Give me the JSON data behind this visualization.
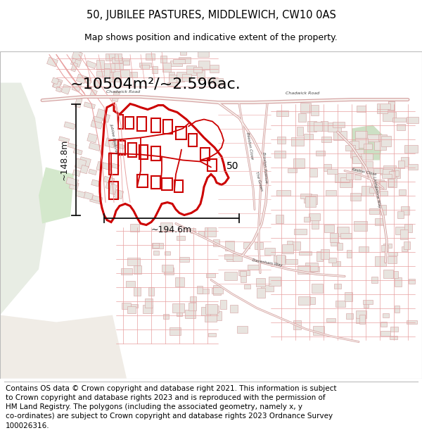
{
  "title": "50, JUBILEE PASTURES, MIDDLEWICH, CW10 0AS",
  "subtitle": "Map shows position and indicative extent of the property.",
  "title_fontsize": 10.5,
  "subtitle_fontsize": 9,
  "area_text": "~10504m²/~2.596ac.",
  "area_fontsize": 17,
  "width_label": "~194.6m",
  "height_label": "~148.8m",
  "number_label": "50",
  "footer_text": "Contains OS data © Crown copyright and database right 2021. This information is subject\nto Crown copyright and database rights 2023 and is reproduced with the permission of\nHM Land Registry. The polygons (including the associated geometry, namely x, y\nco-ordinates) are subject to Crown copyright and database rights 2023 Ordnance Survey\n100026316.",
  "footer_fontsize": 7.5,
  "map_bg_color": "#f9f6f2",
  "building_fill": "#e8e4df",
  "building_edge": "#d4a0a0",
  "road_color": "#e8a0a0",
  "road_color_dark": "#d08080",
  "highlight_color": "#cc0000",
  "green_color": "#dce8d4",
  "green_color2": "#cce0c4",
  "text_color": "#000000",
  "dim_line_color": "#111111",
  "white": "#ffffff",
  "light_gray": "#f0ece6"
}
